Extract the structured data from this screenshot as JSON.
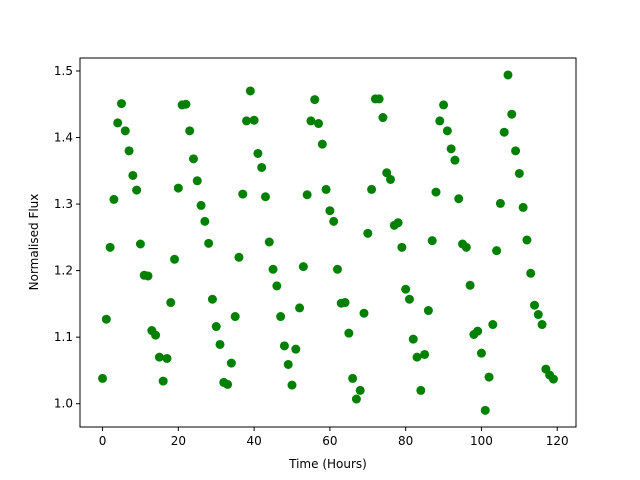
{
  "chart_data": {
    "type": "scatter",
    "x_label": "Time (Hours)",
    "y_label": "Normalised Flux",
    "x": [
      0,
      1,
      2,
      3,
      4,
      5,
      6,
      7,
      8,
      9,
      10,
      11,
      12,
      13,
      14,
      15,
      16,
      17,
      18,
      19,
      20,
      21,
      22,
      23,
      24,
      25,
      26,
      27,
      28,
      29,
      30,
      31,
      32,
      33,
      34,
      35,
      36,
      37,
      38,
      39,
      40,
      41,
      42,
      43,
      44,
      45,
      46,
      47,
      48,
      49,
      50,
      51,
      52,
      53,
      54,
      55,
      56,
      57,
      58,
      59,
      60,
      61,
      62,
      63,
      64,
      65,
      66,
      67,
      68,
      69,
      70,
      71,
      72,
      73,
      74,
      75,
      76,
      77,
      78,
      79,
      80,
      81,
      82,
      83,
      84,
      85,
      86,
      87,
      88,
      89,
      90,
      91,
      92,
      93,
      94,
      95,
      96,
      97,
      98,
      99,
      100,
      101,
      102,
      103,
      104,
      105,
      106,
      107,
      108,
      109,
      110,
      111,
      112,
      113,
      114,
      115,
      116,
      117,
      118,
      119
    ],
    "values": [
      1.038,
      1.127,
      1.235,
      1.307,
      1.422,
      1.451,
      1.41,
      1.38,
      1.343,
      1.321,
      1.24,
      1.193,
      1.192,
      1.11,
      1.103,
      1.07,
      1.034,
      1.068,
      1.152,
      1.217,
      1.324,
      1.449,
      1.45,
      1.41,
      1.368,
      1.335,
      1.298,
      1.274,
      1.241,
      1.157,
      1.116,
      1.089,
      1.032,
      1.029,
      1.061,
      1.131,
      1.22,
      1.315,
      1.425,
      1.47,
      1.426,
      1.376,
      1.355,
      1.311,
      1.243,
      1.202,
      1.177,
      1.131,
      1.087,
      1.059,
      1.028,
      1.082,
      1.144,
      1.206,
      1.314,
      1.425,
      1.457,
      1.421,
      1.39,
      1.322,
      1.29,
      1.274,
      1.202,
      1.151,
      1.152,
      1.106,
      1.038,
      1.007,
      1.02,
      1.136,
      1.256,
      1.322,
      1.458,
      1.458,
      1.43,
      1.347,
      1.337,
      1.268,
      1.272,
      1.235,
      1.172,
      1.157,
      1.097,
      1.07,
      1.02,
      1.074,
      1.14,
      1.245,
      1.318,
      1.425,
      1.449,
      1.41,
      1.383,
      1.366,
      1.308,
      1.24,
      1.235,
      1.178,
      1.104,
      1.109,
      1.076,
      0.99,
      1.04,
      1.119,
      1.23,
      1.301,
      1.408,
      1.494,
      1.435,
      1.38,
      1.346,
      1.295,
      1.246,
      1.196,
      1.148,
      1.134,
      1.119,
      1.052,
      1.043,
      1.037
    ],
    "color": "#008000",
    "xlim": [
      -5.95,
      124.95
    ],
    "xticks": [
      0,
      20,
      40,
      60,
      80,
      100,
      120
    ],
    "ylim": [
      0.965,
      1.5195
    ],
    "yticks": [
      {
        "value": 1,
        "label": "1.0"
      },
      1.1,
      1.2,
      1.3,
      1.4,
      1.5
    ]
  }
}
